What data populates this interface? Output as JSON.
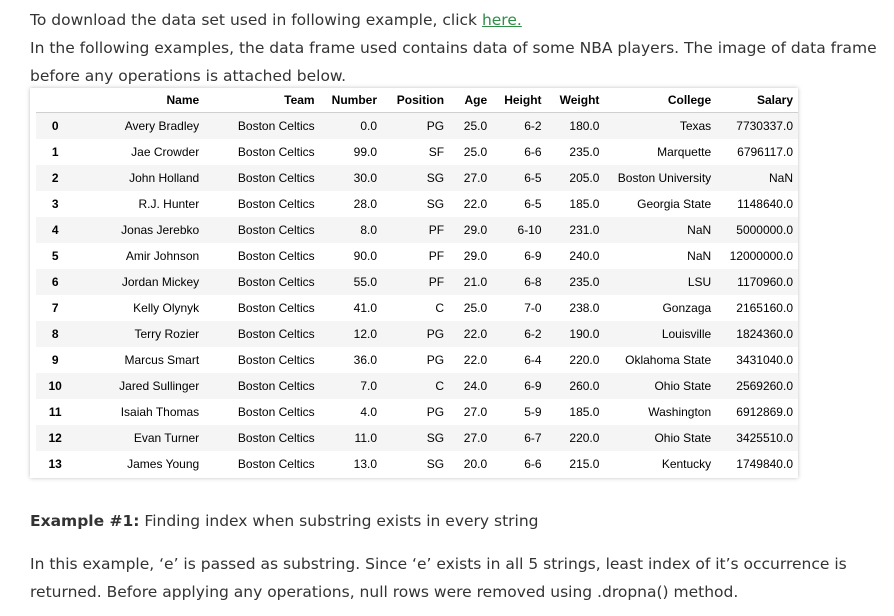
{
  "intro": {
    "line1_prefix": "To download the data set used in following example, click ",
    "line1_link": "here.",
    "paragraph2": "In the following examples, the data frame used contains data of some NBA players. The image of data frame before any operations is attached below."
  },
  "dataframe": {
    "columns": [
      "",
      "Name",
      "Team",
      "Number",
      "Position",
      "Age",
      "Height",
      "Weight",
      "College",
      "Salary"
    ],
    "rows": [
      [
        "0",
        "Avery Bradley",
        "Boston Celtics",
        "0.0",
        "PG",
        "25.0",
        "6-2",
        "180.0",
        "Texas",
        "7730337.0"
      ],
      [
        "1",
        "Jae Crowder",
        "Boston Celtics",
        "99.0",
        "SF",
        "25.0",
        "6-6",
        "235.0",
        "Marquette",
        "6796117.0"
      ],
      [
        "2",
        "John Holland",
        "Boston Celtics",
        "30.0",
        "SG",
        "27.0",
        "6-5",
        "205.0",
        "Boston University",
        "NaN"
      ],
      [
        "3",
        "R.J. Hunter",
        "Boston Celtics",
        "28.0",
        "SG",
        "22.0",
        "6-5",
        "185.0",
        "Georgia State",
        "1148640.0"
      ],
      [
        "4",
        "Jonas Jerebko",
        "Boston Celtics",
        "8.0",
        "PF",
        "29.0",
        "6-10",
        "231.0",
        "NaN",
        "5000000.0"
      ],
      [
        "5",
        "Amir Johnson",
        "Boston Celtics",
        "90.0",
        "PF",
        "29.0",
        "6-9",
        "240.0",
        "NaN",
        "12000000.0"
      ],
      [
        "6",
        "Jordan Mickey",
        "Boston Celtics",
        "55.0",
        "PF",
        "21.0",
        "6-8",
        "235.0",
        "LSU",
        "1170960.0"
      ],
      [
        "7",
        "Kelly Olynyk",
        "Boston Celtics",
        "41.0",
        "C",
        "25.0",
        "7-0",
        "238.0",
        "Gonzaga",
        "2165160.0"
      ],
      [
        "8",
        "Terry Rozier",
        "Boston Celtics",
        "12.0",
        "PG",
        "22.0",
        "6-2",
        "190.0",
        "Louisville",
        "1824360.0"
      ],
      [
        "9",
        "Marcus Smart",
        "Boston Celtics",
        "36.0",
        "PG",
        "22.0",
        "6-4",
        "220.0",
        "Oklahoma State",
        "3431040.0"
      ],
      [
        "10",
        "Jared Sullinger",
        "Boston Celtics",
        "7.0",
        "C",
        "24.0",
        "6-9",
        "260.0",
        "Ohio State",
        "2569260.0"
      ],
      [
        "11",
        "Isaiah Thomas",
        "Boston Celtics",
        "4.0",
        "PG",
        "27.0",
        "5-9",
        "185.0",
        "Washington",
        "6912869.0"
      ],
      [
        "12",
        "Evan Turner",
        "Boston Celtics",
        "11.0",
        "SG",
        "27.0",
        "6-7",
        "220.0",
        "Ohio State",
        "3425510.0"
      ],
      [
        "13",
        "James Young",
        "Boston Celtics",
        "13.0",
        "SG",
        "20.0",
        "6-6",
        "215.0",
        "Kentucky",
        "1749840.0"
      ]
    ]
  },
  "example": {
    "title_bold": "Example #1:",
    "title_rest": " Finding index when substring exists in every string",
    "body": "In this example, ‘e’ is passed as substring. Since ‘e’ exists in all 5 strings, least index of it’s occurrence is returned. Before applying any operations, null rows were removed using .dropna() method."
  },
  "colors": {
    "link": "#2f8d46",
    "text": "#333333",
    "row_stripe": "#f5f5f5"
  }
}
